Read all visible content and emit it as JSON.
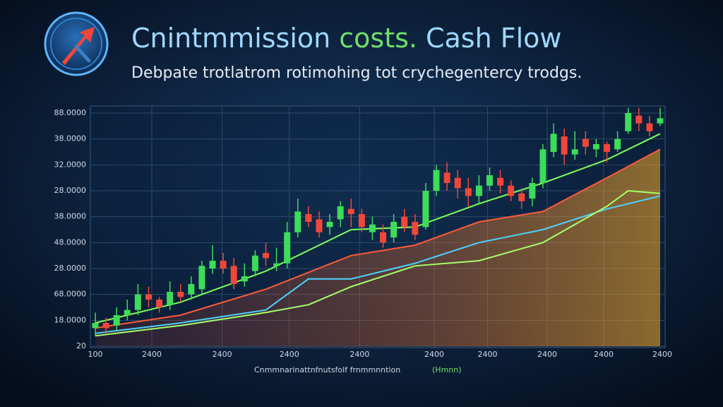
{
  "chart_data": {
    "type": "candlestick",
    "title_parts": [
      {
        "text": "Cnintmmission",
        "color": "#9fd8ff"
      },
      {
        "text": "costs.",
        "color": "#6fe06a"
      },
      {
        "text": "Cash Flow",
        "color": "#9fd8ff"
      }
    ],
    "subtitle": "Debpate trotlatrom rotimohing tot crychegentercy trodgs.",
    "xlabel": "Cnmmnarinattnfnutsfolf frnmmnntion",
    "xlabel_note": "(Hmnn)",
    "up_color": "#3ddc5a",
    "down_color": "#f0473a",
    "grid": true,
    "ylim": [
      0,
      9
    ],
    "yticks": [
      {
        "value": 0,
        "label": "20"
      },
      {
        "value": 1,
        "label": "18.0000"
      },
      {
        "value": 2,
        "label": "68.0000"
      },
      {
        "value": 3,
        "label": "28.0000"
      },
      {
        "value": 4,
        "label": "48.0000"
      },
      {
        "value": 5,
        "label": "38.0000"
      },
      {
        "value": 6,
        "label": "28.0000"
      },
      {
        "value": 7,
        "label": "32.0000"
      },
      {
        "value": 8,
        "label": "38.0000"
      },
      {
        "value": 9,
        "label": "88.0000"
      }
    ],
    "xlim": [
      -0.5,
      53.5
    ],
    "xticks": [
      {
        "value": 0,
        "label": "100"
      },
      {
        "value": 5.3,
        "label": "2400"
      },
      {
        "value": 11.9,
        "label": "2400"
      },
      {
        "value": 18.2,
        "label": "2400"
      },
      {
        "value": 24.8,
        "label": "2400"
      },
      {
        "value": 31.8,
        "label": "2400"
      },
      {
        "value": 36.8,
        "label": "2400"
      },
      {
        "value": 42.4,
        "label": "2400"
      },
      {
        "value": 47.7,
        "label": "2400"
      },
      {
        "value": 53.2,
        "label": "2400"
      }
    ],
    "candles": [
      [
        0.7,
        0.9,
        1.3,
        0.4
      ],
      [
        0.9,
        0.7,
        1.1,
        0.5
      ],
      [
        0.8,
        1.2,
        1.5,
        0.6
      ],
      [
        1.2,
        1.4,
        1.8,
        1.0
      ],
      [
        1.4,
        2.0,
        2.4,
        1.2
      ],
      [
        2.0,
        1.8,
        2.3,
        1.5
      ],
      [
        1.8,
        1.5,
        1.9,
        1.3
      ],
      [
        1.6,
        2.1,
        2.5,
        1.4
      ],
      [
        2.1,
        1.9,
        2.4,
        1.7
      ],
      [
        2.0,
        2.4,
        2.7,
        1.8
      ],
      [
        2.2,
        3.1,
        3.3,
        2.0
      ],
      [
        3.0,
        3.3,
        3.9,
        2.8
      ],
      [
        3.3,
        3.0,
        3.6,
        2.8
      ],
      [
        3.1,
        2.4,
        3.4,
        2.2
      ],
      [
        2.5,
        2.7,
        3.2,
        2.3
      ],
      [
        2.9,
        3.5,
        3.7,
        2.7
      ],
      [
        3.6,
        3.4,
        4.0,
        3.1
      ],
      [
        3.1,
        3.2,
        3.8,
        2.9
      ],
      [
        3.2,
        4.4,
        4.8,
        3.0
      ],
      [
        4.4,
        5.2,
        5.7,
        4.2
      ],
      [
        5.1,
        4.8,
        5.4,
        4.6
      ],
      [
        4.9,
        4.4,
        5.2,
        4.2
      ],
      [
        4.6,
        4.8,
        5.1,
        4.3
      ],
      [
        4.9,
        5.4,
        5.6,
        4.6
      ],
      [
        5.3,
        5.1,
        5.7,
        4.6
      ],
      [
        5.1,
        4.6,
        5.3,
        4.4
      ],
      [
        4.4,
        4.7,
        5.0,
        4.1
      ],
      [
        4.4,
        4.0,
        4.7,
        3.8
      ],
      [
        4.2,
        4.8,
        5.1,
        4.0
      ],
      [
        5.0,
        4.6,
        5.3,
        4.4
      ],
      [
        4.8,
        4.3,
        5.1,
        4.1
      ],
      [
        4.6,
        6.0,
        6.3,
        4.5
      ],
      [
        6.0,
        6.8,
        7.0,
        5.8
      ],
      [
        6.7,
        6.3,
        7.1,
        6.0
      ],
      [
        6.5,
        6.1,
        6.8,
        5.7
      ],
      [
        6.1,
        5.8,
        6.5,
        5.4
      ],
      [
        5.8,
        6.2,
        6.6,
        5.5
      ],
      [
        6.2,
        6.6,
        6.9,
        6.0
      ],
      [
        6.5,
        6.2,
        6.8,
        5.9
      ],
      [
        6.2,
        5.8,
        6.4,
        5.6
      ],
      [
        5.9,
        5.6,
        6.1,
        5.3
      ],
      [
        5.7,
        6.3,
        6.5,
        5.4
      ],
      [
        6.3,
        7.6,
        7.8,
        6.1
      ],
      [
        7.5,
        8.2,
        8.6,
        7.3
      ],
      [
        8.1,
        7.4,
        8.4,
        7.0
      ],
      [
        7.4,
        7.6,
        8.3,
        7.2
      ],
      [
        8.0,
        7.7,
        8.3,
        7.4
      ],
      [
        7.6,
        7.8,
        8.0,
        7.3
      ],
      [
        7.8,
        7.5,
        7.9,
        7.1
      ],
      [
        7.6,
        8.0,
        8.3,
        7.5
      ],
      [
        8.3,
        9.0,
        9.2,
        8.2
      ],
      [
        8.9,
        8.6,
        9.2,
        8.3
      ],
      [
        8.6,
        8.3,
        8.9,
        8.1
      ],
      [
        8.6,
        8.8,
        9.2,
        8.5
      ]
    ],
    "lines": [
      {
        "color": "#ff5a3c",
        "fill": true,
        "x": [
          0,
          8,
          16,
          24,
          30,
          36,
          42,
          48,
          53
        ],
        "values": [
          0.7,
          1.2,
          2.2,
          3.5,
          3.9,
          4.8,
          5.2,
          6.5,
          7.6
        ]
      },
      {
        "color": "#7dff5a",
        "fill": false,
        "x": [
          0,
          8,
          16,
          24,
          30,
          36,
          42,
          48,
          53
        ],
        "values": [
          0.9,
          1.7,
          2.9,
          4.5,
          4.6,
          5.5,
          6.3,
          7.2,
          8.2
        ]
      },
      {
        "color": "#4fd2ff",
        "fill": false,
        "x": [
          0,
          8,
          16,
          20,
          24,
          30,
          36,
          42,
          48,
          53
        ],
        "values": [
          0.5,
          0.9,
          1.4,
          2.6,
          2.6,
          3.2,
          4.0,
          4.5,
          5.3,
          5.8
        ]
      },
      {
        "color": "#a8ff6a",
        "fill": false,
        "x": [
          0,
          8,
          16,
          20,
          24,
          30,
          36,
          42,
          48,
          50,
          53
        ],
        "values": [
          0.4,
          0.8,
          1.3,
          1.6,
          2.3,
          3.1,
          3.3,
          4.0,
          5.4,
          6.0,
          5.9
        ]
      }
    ]
  }
}
